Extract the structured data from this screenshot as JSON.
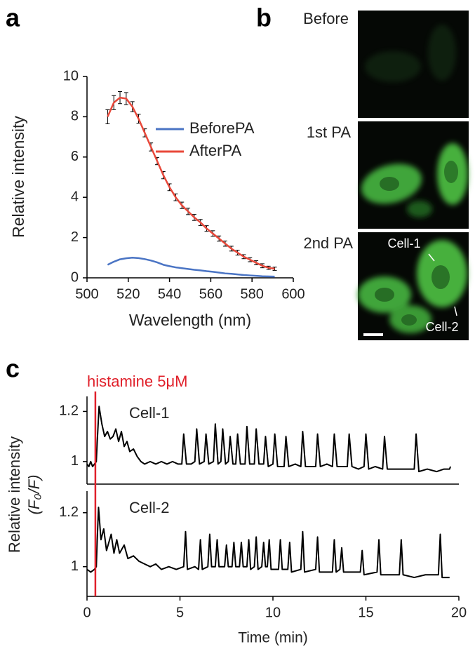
{
  "chart_data": [
    {
      "panel": "a",
      "type": "line",
      "xlabel": "Wavelength (nm)",
      "ylabel": "Relative intensity",
      "x": [
        510,
        513,
        516,
        519,
        522,
        525,
        528,
        531,
        534,
        537,
        540,
        543,
        546,
        549,
        552,
        555,
        558,
        561,
        564,
        567,
        570,
        573,
        576,
        579,
        582,
        585,
        588,
        591
      ],
      "xlim": [
        500,
        600
      ],
      "xticks": [
        500,
        520,
        540,
        560,
        580,
        600
      ],
      "ylim": [
        0,
        10
      ],
      "yticks": [
        0,
        2,
        4,
        6,
        8,
        10
      ],
      "legend": "upper right",
      "series": [
        {
          "name": "BeforePA",
          "color": "#4a74c4",
          "values": [
            0.65,
            0.8,
            0.92,
            0.97,
            1.0,
            0.98,
            0.93,
            0.86,
            0.77,
            0.65,
            0.58,
            0.52,
            0.48,
            0.44,
            0.4,
            0.37,
            0.33,
            0.3,
            0.26,
            0.22,
            0.2,
            0.17,
            0.14,
            0.12,
            0.1,
            0.08,
            0.07,
            0.06
          ]
        },
        {
          "name": "AfterPA",
          "color": "#e8483a",
          "values": [
            8.0,
            8.7,
            8.95,
            8.9,
            8.5,
            7.9,
            7.2,
            6.5,
            5.8,
            5.1,
            4.5,
            4.0,
            3.6,
            3.3,
            3.0,
            2.75,
            2.45,
            2.2,
            1.95,
            1.7,
            1.45,
            1.25,
            1.05,
            0.9,
            0.75,
            0.6,
            0.5,
            0.45
          ],
          "errors": [
            0.35,
            0.35,
            0.3,
            0.3,
            0.25,
            0.22,
            0.2,
            0.2,
            0.18,
            0.18,
            0.17,
            0.17,
            0.16,
            0.16,
            0.15,
            0.15,
            0.14,
            0.14,
            0.13,
            0.13,
            0.12,
            0.12,
            0.1,
            0.1,
            0.1,
            0.1,
            0.08,
            0.08
          ]
        }
      ]
    },
    {
      "panel": "c",
      "type": "line",
      "label": "Cell-1",
      "ylabel": [
        "Relative intensity",
        "(F₀/F)"
      ],
      "annotation": {
        "text": "histamine 5μM",
        "x": 0.45,
        "color": "#e0202a"
      },
      "color": "#000000",
      "xlim": [
        0,
        20
      ],
      "ylim": [
        0.91,
        1.26
      ],
      "yticks": [
        1,
        1.2
      ],
      "x": [
        0,
        0.1,
        0.2,
        0.3,
        0.4,
        0.5,
        0.55,
        0.65,
        0.8,
        0.95,
        1.1,
        1.25,
        1.4,
        1.55,
        1.7,
        1.85,
        2.0,
        2.15,
        2.3,
        2.5,
        2.7,
        2.9,
        3.1,
        3.4,
        3.7,
        4.0,
        4.3,
        4.6,
        4.9,
        5.1,
        5.2,
        5.35,
        5.6,
        5.8,
        5.9,
        6.05,
        6.3,
        6.4,
        6.55,
        6.8,
        6.9,
        7.05,
        7.2,
        7.3,
        7.45,
        7.6,
        7.7,
        7.85,
        8.0,
        8.1,
        8.25,
        8.5,
        8.6,
        8.75,
        9.0,
        9.1,
        9.25,
        9.5,
        9.6,
        9.75,
        10.0,
        10.1,
        10.25,
        10.6,
        10.7,
        10.85,
        11.2,
        11.5,
        11.6,
        11.75,
        12.1,
        12.3,
        12.4,
        12.55,
        12.9,
        13.2,
        13.3,
        13.45,
        13.8,
        14.0,
        14.1,
        14.25,
        14.6,
        14.9,
        15.0,
        15.15,
        15.5,
        15.9,
        16.0,
        16.15,
        16.6,
        17.1,
        17.6,
        17.7,
        17.85,
        18.3,
        18.8,
        19.2,
        19.5,
        19.55
      ],
      "values": [
        0.99,
        0.98,
        1.0,
        0.98,
        0.99,
        1.0,
        1.08,
        1.22,
        1.15,
        1.1,
        1.12,
        1.09,
        1.1,
        1.13,
        1.08,
        1.12,
        1.06,
        1.08,
        1.04,
        1.05,
        1.02,
        1.0,
        0.99,
        1.0,
        0.99,
        1.0,
        0.99,
        1.0,
        0.99,
        0.99,
        1.11,
        0.99,
        0.99,
        1.0,
        1.13,
        0.99,
        1.0,
        1.11,
        0.99,
        1.0,
        1.15,
        0.99,
        1.0,
        1.13,
        0.99,
        1.0,
        1.1,
        0.99,
        0.99,
        1.11,
        0.99,
        0.99,
        1.14,
        0.99,
        0.99,
        1.13,
        0.99,
        0.99,
        1.1,
        0.98,
        0.99,
        1.11,
        0.98,
        0.98,
        1.1,
        0.98,
        0.99,
        0.98,
        1.12,
        0.98,
        0.98,
        0.98,
        1.11,
        0.98,
        0.99,
        0.98,
        1.11,
        0.98,
        0.98,
        0.98,
        1.11,
        0.98,
        0.97,
        0.98,
        1.11,
        0.97,
        0.98,
        0.97,
        1.1,
        0.97,
        0.97,
        0.97,
        0.97,
        1.11,
        0.96,
        0.97,
        0.96,
        0.97,
        0.97,
        0.98
      ]
    },
    {
      "type": "line",
      "label": "Cell-2",
      "xlabel": "Time (min)",
      "color": "#000000",
      "xlim": [
        0,
        20
      ],
      "xticks": [
        0,
        5,
        10,
        15,
        20
      ],
      "ylim": [
        0.89,
        1.28
      ],
      "yticks": [
        1,
        1.2
      ],
      "x": [
        0,
        0.2,
        0.4,
        0.5,
        0.55,
        0.62,
        0.75,
        0.9,
        1.05,
        1.3,
        1.45,
        1.6,
        1.75,
        2.0,
        2.2,
        2.5,
        2.8,
        3.1,
        3.4,
        3.7,
        4.0,
        4.4,
        4.8,
        5.2,
        5.3,
        5.4,
        5.8,
        6.0,
        6.1,
        6.2,
        6.5,
        6.6,
        6.7,
        6.9,
        7.0,
        7.1,
        7.4,
        7.5,
        7.6,
        7.8,
        7.9,
        8.0,
        8.2,
        8.3,
        8.4,
        8.6,
        8.7,
        8.8,
        9.0,
        9.1,
        9.2,
        9.4,
        9.5,
        9.6,
        9.7,
        9.8,
        9.9,
        10.3,
        10.4,
        10.5,
        10.8,
        10.9,
        11.0,
        11.5,
        11.6,
        11.7,
        12.3,
        12.4,
        12.5,
        13.2,
        13.3,
        13.4,
        13.6,
        13.7,
        13.8,
        14.7,
        14.8,
        14.9,
        15.6,
        15.7,
        15.8,
        16.8,
        16.9,
        17.0,
        17.6,
        18.2,
        18.9,
        19.0,
        19.1,
        19.5
      ],
      "values": [
        0.99,
        0.98,
        0.99,
        1.0,
        1.1,
        1.22,
        1.1,
        1.14,
        1.06,
        1.12,
        1.05,
        1.1,
        1.05,
        1.08,
        1.03,
        1.04,
        1.02,
        1.01,
        1.0,
        1.01,
        0.99,
        1.0,
        0.99,
        1.0,
        1.13,
        0.99,
        1.0,
        0.99,
        1.1,
        0.99,
        1.0,
        1.12,
        1.0,
        1.0,
        1.1,
        1.0,
        1.0,
        1.08,
        1.0,
        1.0,
        1.09,
        1.0,
        1.0,
        1.09,
        1.0,
        1.0,
        1.1,
        0.99,
        1.0,
        1.11,
        0.99,
        1.0,
        1.09,
        1.0,
        1.0,
        1.1,
        0.99,
        0.99,
        1.1,
        0.99,
        0.99,
        1.09,
        0.98,
        0.99,
        1.13,
        0.98,
        0.99,
        1.11,
        0.98,
        0.98,
        1.1,
        0.98,
        0.99,
        1.07,
        0.98,
        0.98,
        1.06,
        0.97,
        0.98,
        1.1,
        0.97,
        0.97,
        1.1,
        0.97,
        0.96,
        0.97,
        0.97,
        1.12,
        0.96,
        0.96
      ]
    }
  ],
  "image_panel": {
    "panel": "b",
    "rows": [
      "Before",
      "1st PA",
      "2nd PA"
    ],
    "cells": [
      "Cell-1",
      "Cell-2"
    ]
  }
}
